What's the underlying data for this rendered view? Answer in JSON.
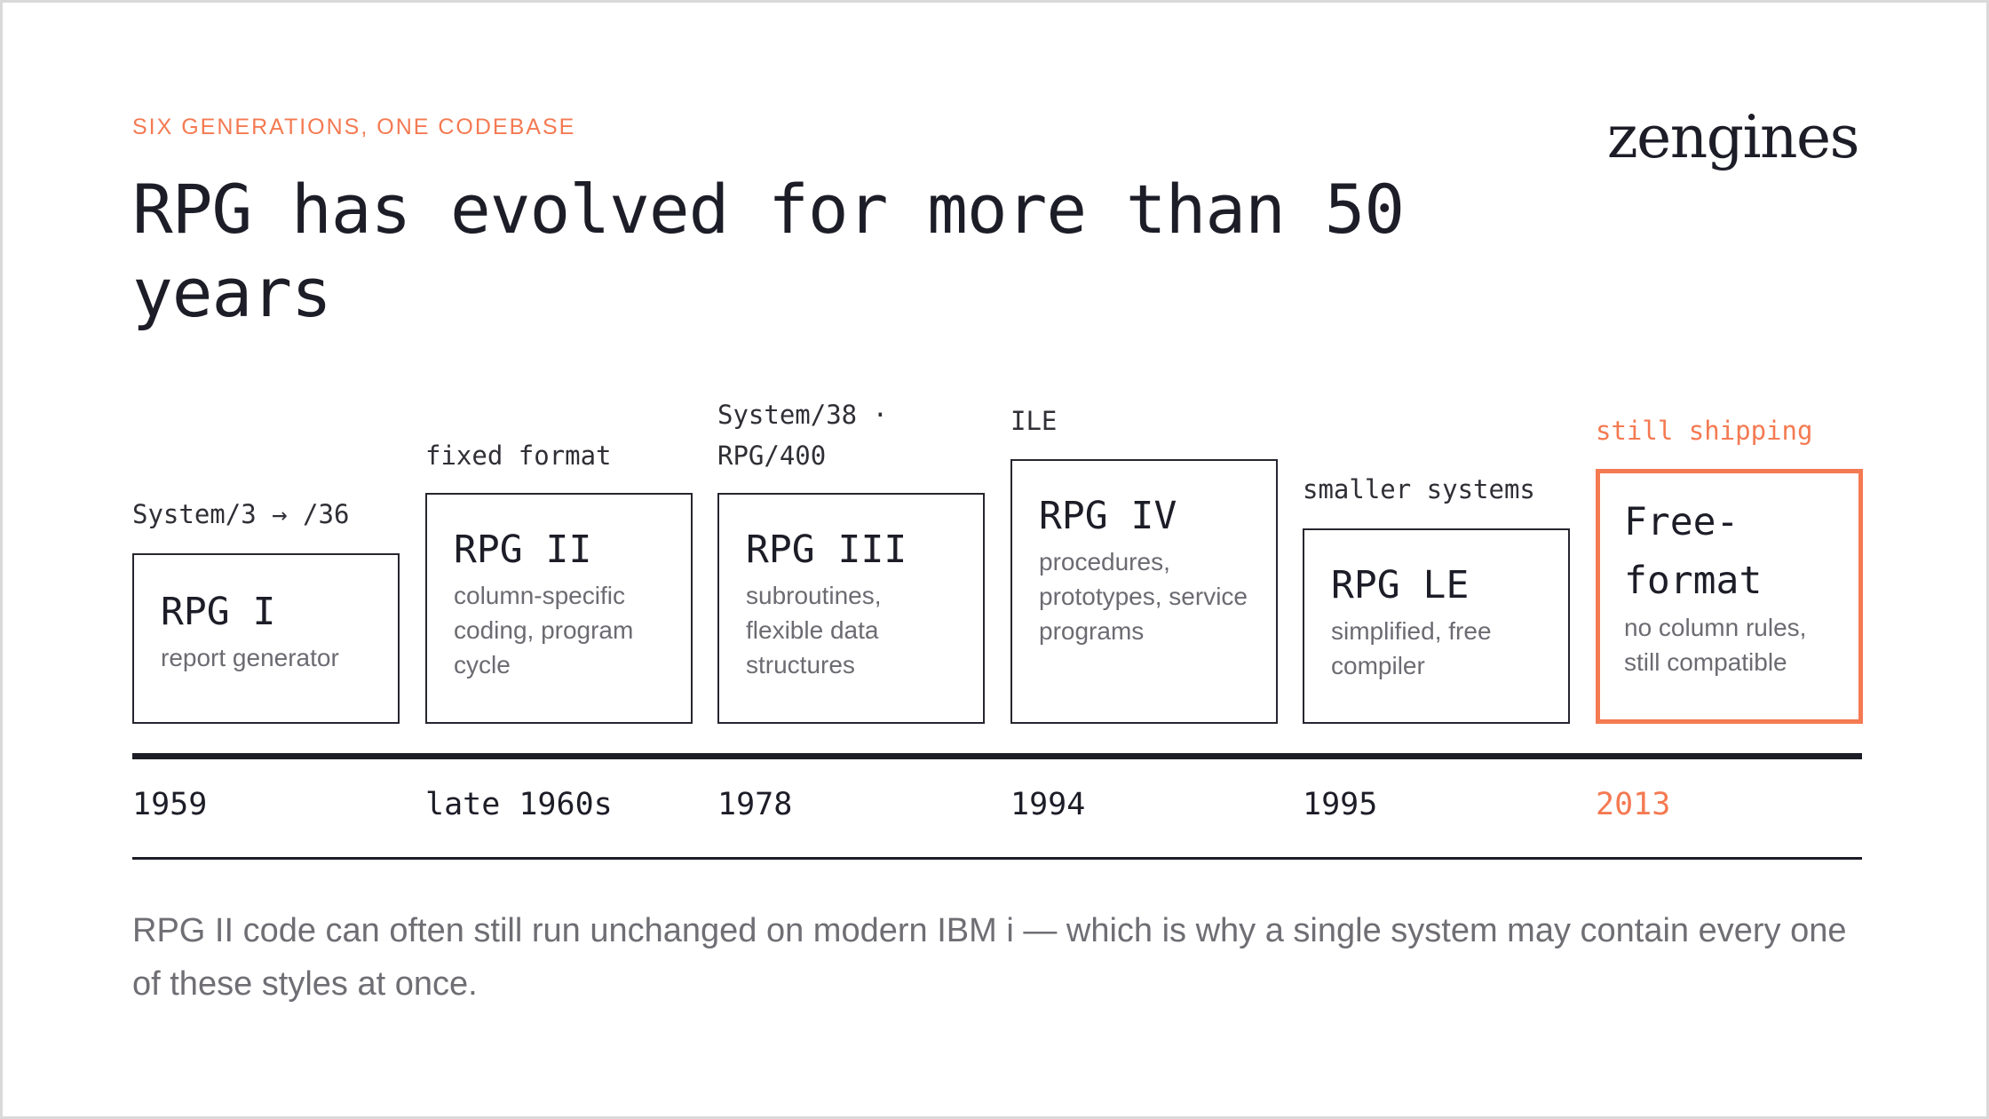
{
  "header": {
    "eyebrow": "SIX GENERATIONS, ONE CODEBASE",
    "title": "RPG has evolved for more than 50 years",
    "logo": "zengines"
  },
  "colors": {
    "accent": "#f47a52",
    "ink": "#1d1d28",
    "muted": "#6b6b72"
  },
  "timeline": {
    "stages": [
      {
        "caption": "System/3 → /36",
        "name": "RPG I",
        "description": "report generator",
        "year": "1959"
      },
      {
        "caption": "fixed format",
        "name": "RPG II",
        "description": "column-specific coding, program cycle",
        "year": "late 1960s"
      },
      {
        "caption": "System/38 · RPG/400",
        "name": "RPG III",
        "description": "subroutines, flexible data structures",
        "year": "1978"
      },
      {
        "caption": "ILE",
        "name": "RPG IV",
        "description": "procedures, prototypes, service programs",
        "year": "1994"
      },
      {
        "caption": "smaller systems",
        "name": "RPG LE",
        "description": "simplified, free compiler",
        "year": "1995"
      },
      {
        "caption": "still shipping",
        "name": "Free-format",
        "description": "no column rules, still compatible",
        "year": "2013",
        "highlighted": true
      }
    ]
  },
  "footnote": "RPG II code can often still run unchanged on modern IBM i — which is why a single system may contain every one of these styles at once."
}
